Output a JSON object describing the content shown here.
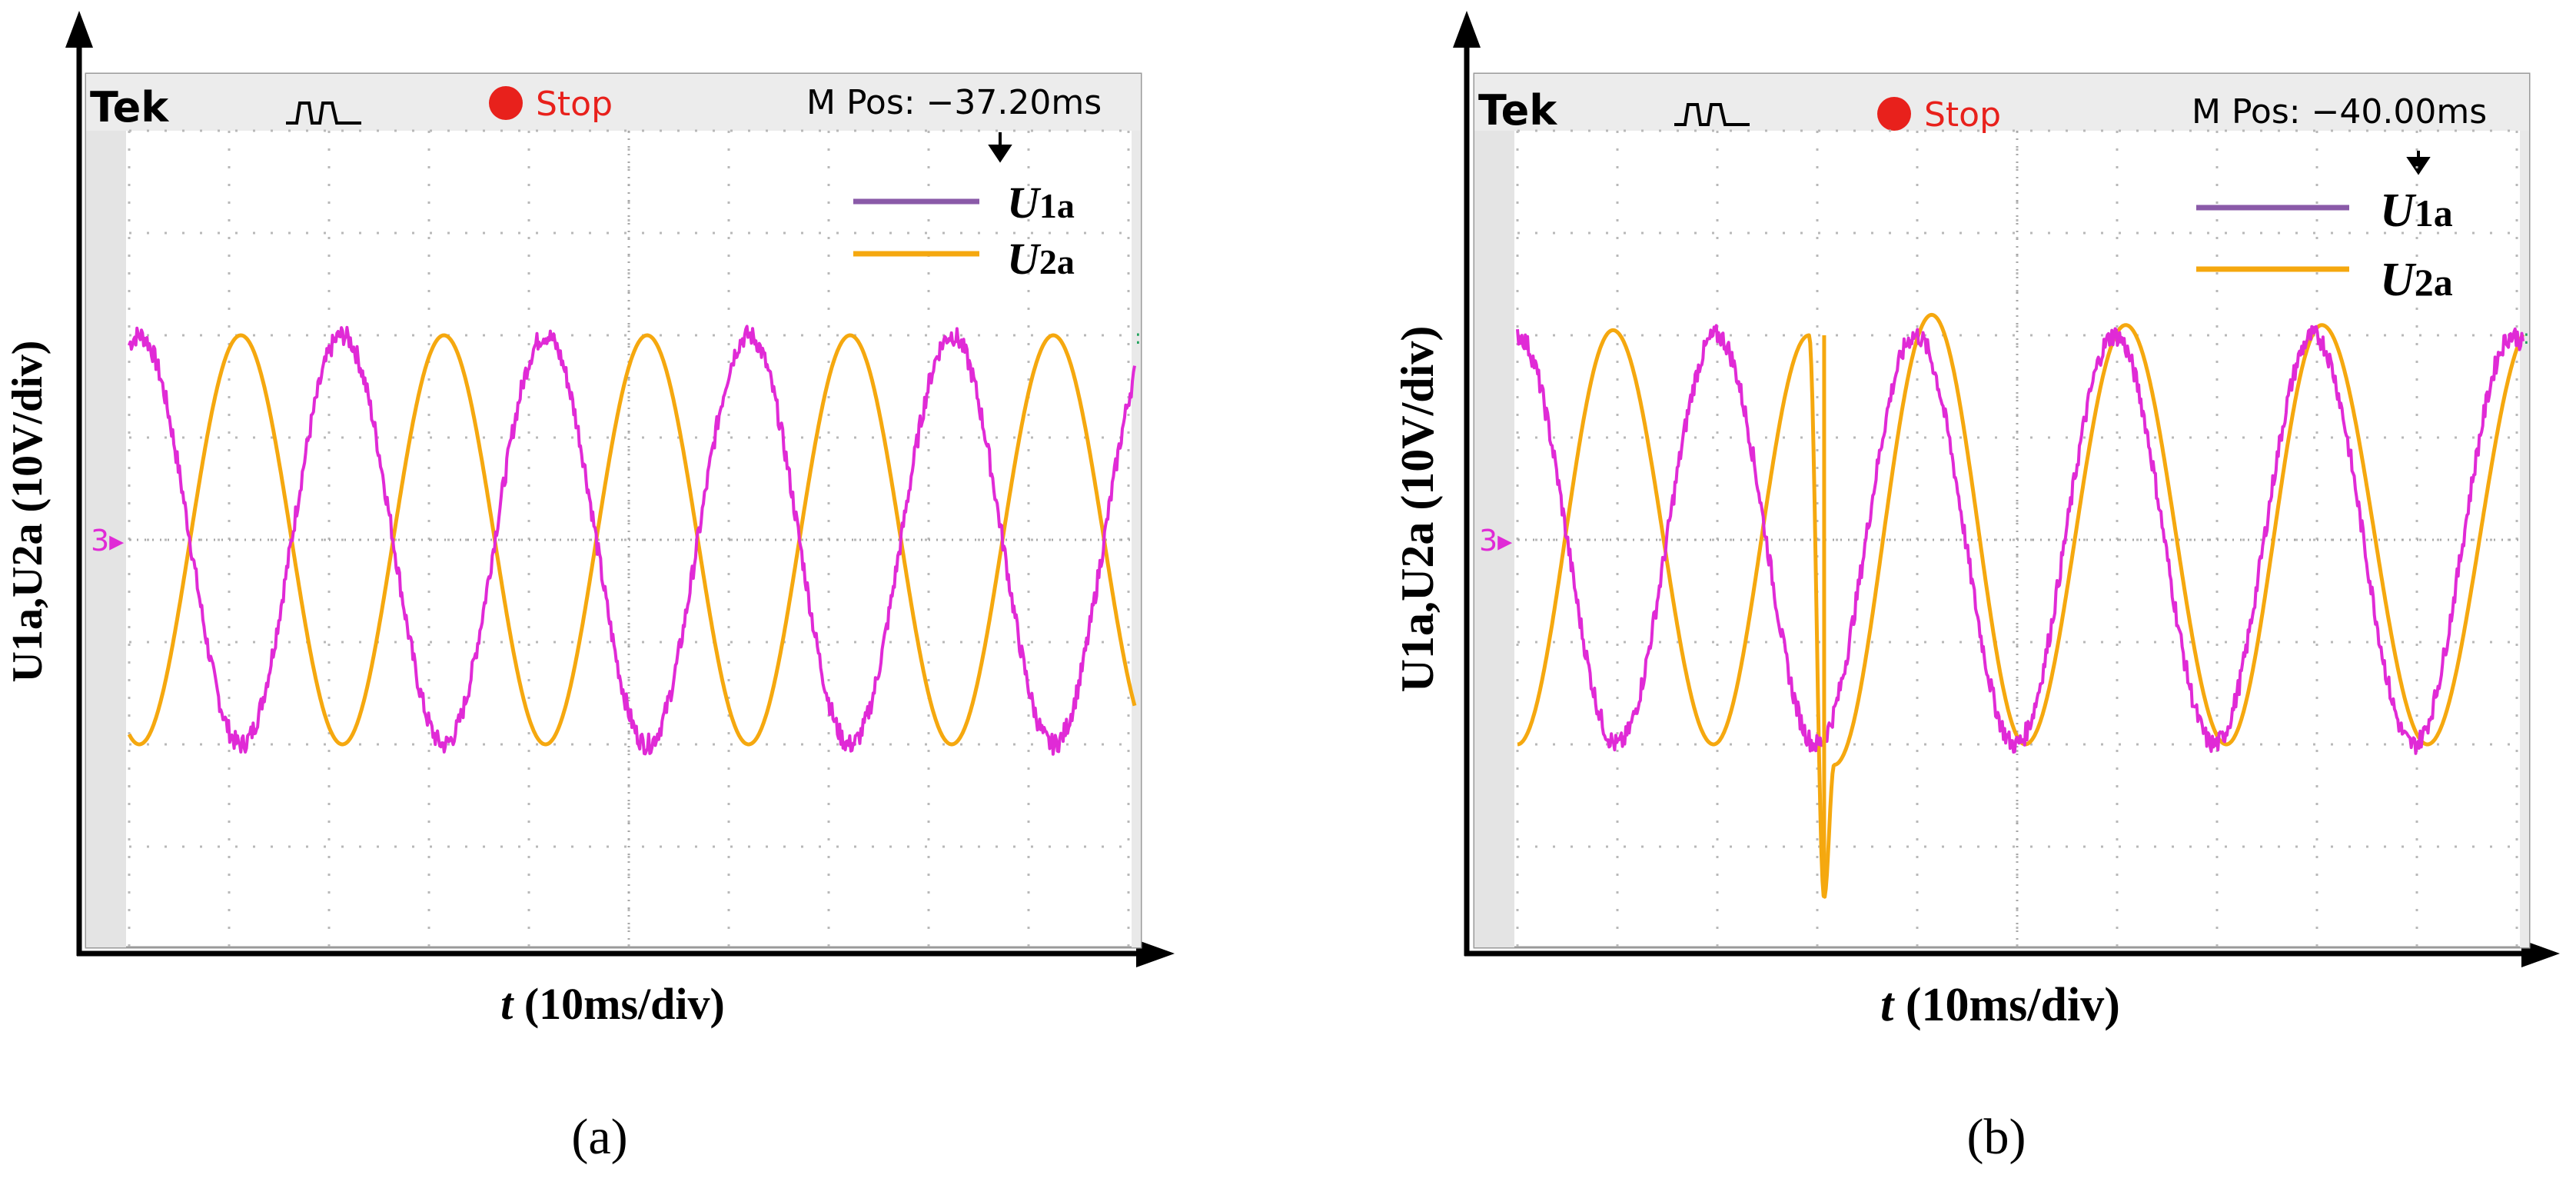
{
  "figure": {
    "panels": [
      {
        "caption": "(a)",
        "scope": {
          "brand": "Tek",
          "trigger_icon": "trigger-pulse-icon",
          "status": "Stop",
          "mpos": "M Pos: −37.20ms"
        },
        "axes": {
          "xlabel_var": "t",
          "xlabel_unit": " (10ms/div)",
          "ylabel_text": "U1a,U2a (10V/div)"
        },
        "legend": [
          {
            "label_var": "U",
            "label_sub": "1a"
          },
          {
            "label_var": "U",
            "label_sub": "2a"
          }
        ]
      },
      {
        "caption": "(b)",
        "scope": {
          "brand": "Tek",
          "trigger_icon": "trigger-pulse-icon",
          "status": "Stop",
          "mpos": "M Pos: −40.00ms"
        },
        "axes": {
          "xlabel_var": "t",
          "xlabel_unit": " (10ms/div)",
          "ylabel_text": "U1a,U2a (10V/div)"
        },
        "legend": [
          {
            "label_var": "U",
            "label_sub": "1a"
          },
          {
            "label_var": "U",
            "label_sub": "2a"
          }
        ]
      }
    ]
  },
  "colors": {
    "u1a": "#e02ad6",
    "u1a_legend": "#8a5aa8",
    "u2a": "#f5a80f",
    "stop": "#e8211c",
    "grid": "#b8b8b8",
    "frame": "#222222"
  },
  "chart_data": [
    {
      "type": "line",
      "title": "(a)",
      "xlabel": "t (10ms/div)",
      "ylabel": "U1a,U2a (10V/div)",
      "xlim": [
        0,
        100
      ],
      "ylim": [
        -40,
        40
      ],
      "series": [
        {
          "name": "U1a",
          "waveform": "sine",
          "amplitude": 20,
          "period": 20.2,
          "phase_deg": 72,
          "noise": 0.9,
          "extrema": [
            [
              7.5,
              -21
            ],
            [
              17.5,
              20.5
            ],
            [
              27.5,
              -21
            ],
            [
              37.5,
              20
            ],
            [
              47.5,
              -21
            ],
            [
              57.5,
              20.5
            ],
            [
              67.5,
              -21
            ],
            [
              77.5,
              20.5
            ],
            [
              87.5,
              -21
            ]
          ]
        },
        {
          "name": "U2a",
          "waveform": "sine",
          "amplitude": 20,
          "period": 20.2,
          "phase_deg": -108,
          "extrema": [
            [
              2,
              -20
            ],
            [
              11.5,
              20.5
            ],
            [
              21.5,
              -20
            ],
            [
              31,
              20.5
            ],
            [
              41.5,
              -20
            ],
            [
              51,
              20.5
            ],
            [
              61.5,
              -20
            ],
            [
              71,
              20.5
            ],
            [
              81.5,
              -20
            ],
            [
              91.5,
              20.5
            ]
          ]
        }
      ]
    },
    {
      "type": "line",
      "title": "(b)",
      "xlabel": "t (10ms/div)",
      "ylabel": "U1a,U2a (10V/div)",
      "xlim": [
        0,
        100
      ],
      "ylim": [
        -40,
        40
      ],
      "events": [
        {
          "name": "U2a spike",
          "x": 30.5,
          "y_min": -35
        }
      ],
      "series": [
        {
          "name": "U1a",
          "waveform": "sine",
          "amplitude": 20,
          "period": 19.8,
          "phase_deg": 90,
          "noise": 0.9,
          "extrema": [
            [
              0,
              20
            ],
            [
              10,
              -20
            ],
            [
              20,
              20
            ],
            [
              31,
              -23
            ],
            [
              40.5,
              22
            ],
            [
              50.5,
              -20
            ],
            [
              60.5,
              21
            ],
            [
              70.5,
              -20
            ],
            [
              80,
              21
            ],
            [
              90.5,
              -20
            ]
          ]
        },
        {
          "name": "U2a",
          "waveform": "piecewise_sine",
          "amplitude": 20,
          "extrema": [
            [
              0,
              -20
            ],
            [
              9.5,
              20.5
            ],
            [
              19.5,
              -20
            ],
            [
              29,
              20
            ],
            [
              30.5,
              -35
            ],
            [
              31.5,
              -22
            ],
            [
              41.2,
              22
            ],
            [
              50.5,
              -20
            ],
            [
              60.5,
              21
            ],
            [
              70.5,
              -20
            ],
            [
              80,
              21
            ],
            [
              90.5,
              -20
            ]
          ]
        }
      ]
    }
  ]
}
